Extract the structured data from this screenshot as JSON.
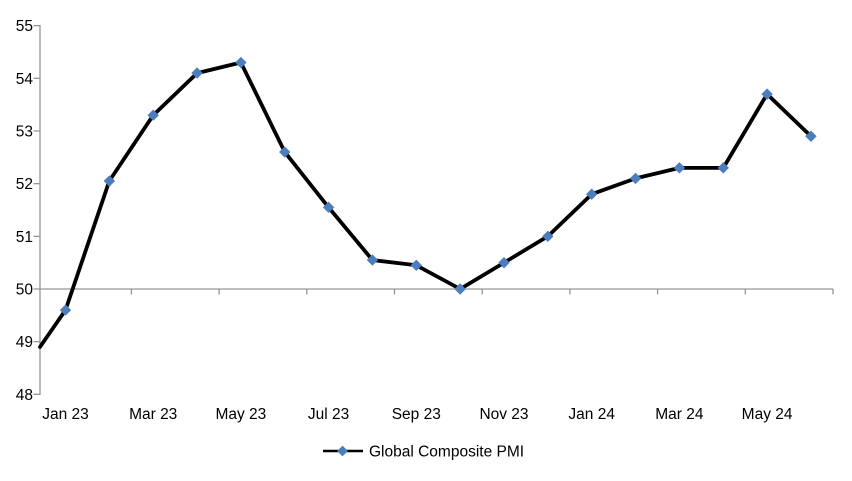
{
  "chart_data": {
    "type": "line",
    "title": "",
    "categories": [
      "Jan 23",
      "Feb 23",
      "Mar 23",
      "Apr 23",
      "May 23",
      "Jun 23",
      "Jul 23",
      "Aug 23",
      "Sep 23",
      "Oct 23",
      "Nov 23",
      "Dec 23",
      "Jan 24",
      "Feb 24",
      "Mar 24",
      "Apr 24",
      "May 24",
      "Jun 24"
    ],
    "series": [
      {
        "name": "Global Composite PMI",
        "values": [
          49.6,
          52.05,
          53.3,
          54.1,
          54.3,
          52.6,
          51.55,
          50.55,
          50.45,
          50.0,
          50.5,
          51.0,
          51.8,
          52.1,
          52.3,
          52.3,
          53.7,
          52.9
        ]
      }
    ],
    "edge_start_value": 48.9,
    "x_tick_labels": [
      "Jan 23",
      "Mar 23",
      "May 23",
      "Jul 23",
      "Sep 23",
      "Nov 23",
      "Jan 24",
      "Mar 24",
      "May 24"
    ],
    "y_tick_labels": [
      "48",
      "49",
      "50",
      "51",
      "52",
      "53",
      "54",
      "55"
    ],
    "y_ticks": [
      48,
      49,
      50,
      51,
      52,
      53,
      54,
      55
    ],
    "ylim": [
      48,
      55
    ],
    "x_axis_position_value": 50,
    "grid": false,
    "marker": "diamond",
    "legend": {
      "label": "Global Composite PMI",
      "position": "bottom-center"
    },
    "colors": {
      "line": "#000000",
      "marker": "#4C7EBD",
      "axis": "#969696",
      "text": "#000000",
      "background": "#FFFFFF"
    }
  }
}
